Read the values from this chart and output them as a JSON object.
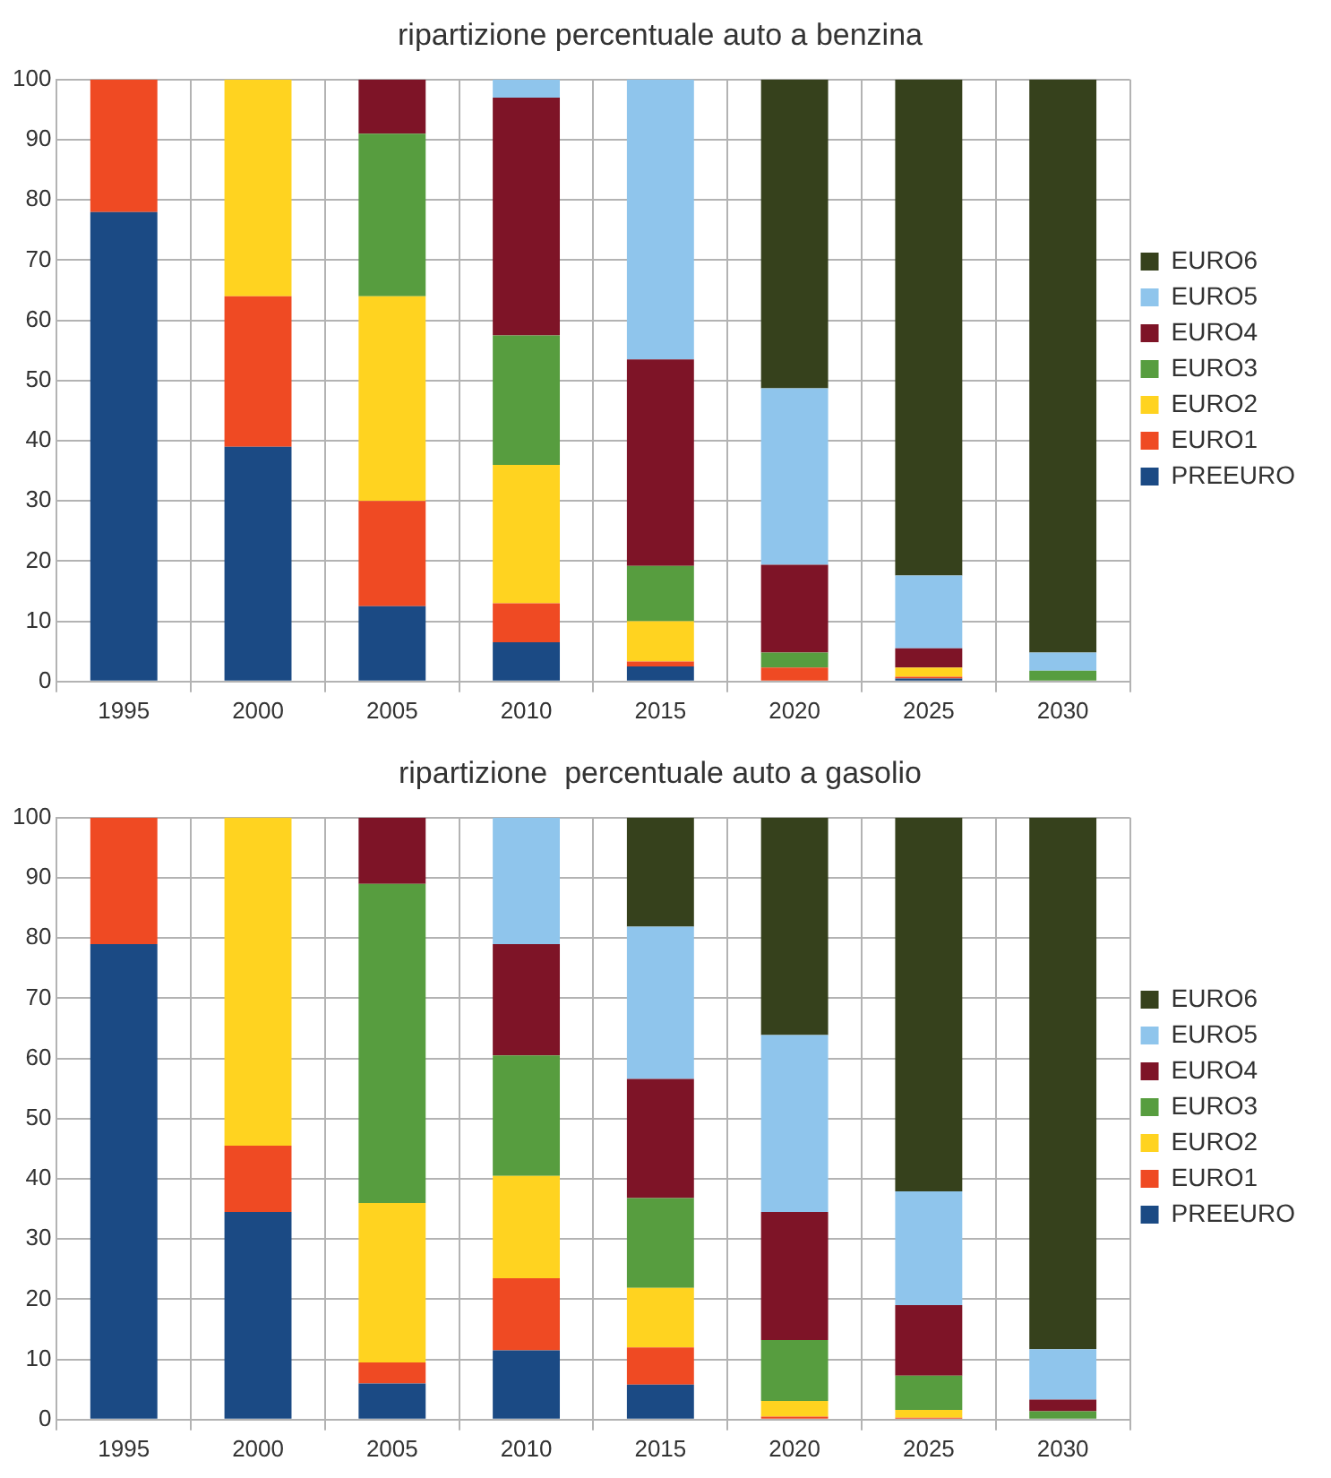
{
  "chart_data": [
    {
      "type": "bar",
      "title": "ripartizione percentuale auto a benzina",
      "stacked": true,
      "categories": [
        "1995",
        "2000",
        "2005",
        "2010",
        "2015",
        "2020",
        "2025",
        "2030"
      ],
      "ylim": [
        0,
        100
      ],
      "yticks": [
        0,
        10,
        20,
        30,
        40,
        50,
        60,
        70,
        80,
        90,
        100
      ],
      "grid": true,
      "legend": "right",
      "series": [
        {
          "name": "PREEURO",
          "color": "#1b4a84",
          "values": [
            78,
            39,
            12.5,
            6.5,
            2.5,
            0,
            0.5,
            0
          ]
        },
        {
          "name": "EURO1",
          "color": "#ef4a23",
          "values": [
            22,
            25,
            17.5,
            6.5,
            0.8,
            2.3,
            0.3,
            0
          ]
        },
        {
          "name": "EURO2",
          "color": "#ffd320",
          "values": [
            0,
            36,
            34,
            23,
            6.7,
            0,
            1.5,
            0
          ]
        },
        {
          "name": "EURO3",
          "color": "#579d3f",
          "values": [
            0,
            0,
            27,
            21.5,
            9.2,
            2.5,
            0,
            1.8
          ]
        },
        {
          "name": "EURO4",
          "color": "#7e1427",
          "values": [
            0,
            0,
            9,
            39.5,
            34.3,
            14.6,
            3.2,
            0
          ]
        },
        {
          "name": "EURO5",
          "color": "#8fc5ec",
          "values": [
            0,
            0,
            0,
            3,
            46.5,
            29.3,
            12.1,
            3
          ]
        },
        {
          "name": "EURO6",
          "color": "#36411c",
          "values": [
            0,
            0,
            0,
            0,
            0,
            51.3,
            82.4,
            95.2
          ]
        }
      ]
    },
    {
      "type": "bar",
      "title": "ripartizione  percentuale auto a gasolio",
      "stacked": true,
      "categories": [
        "1995",
        "2000",
        "2005",
        "2010",
        "2015",
        "2020",
        "2025",
        "2030"
      ],
      "ylim": [
        0,
        100
      ],
      "yticks": [
        0,
        10,
        20,
        30,
        40,
        50,
        60,
        70,
        80,
        90,
        100
      ],
      "grid": true,
      "legend": "right",
      "series": [
        {
          "name": "PREEURO",
          "color": "#1b4a84",
          "values": [
            79,
            34.5,
            6,
            11.5,
            5.8,
            0,
            0,
            0
          ]
        },
        {
          "name": "EURO1",
          "color": "#ef4a23",
          "values": [
            21,
            11,
            3.5,
            12,
            6.2,
            0.5,
            0.3,
            0
          ]
        },
        {
          "name": "EURO2",
          "color": "#ffd320",
          "values": [
            0,
            54.5,
            26.5,
            17,
            9.9,
            2.6,
            1.3,
            0
          ]
        },
        {
          "name": "EURO3",
          "color": "#579d3f",
          "values": [
            0,
            0,
            53,
            20,
            14.9,
            10.1,
            5.7,
            1.4
          ]
        },
        {
          "name": "EURO4",
          "color": "#7e1427",
          "values": [
            0,
            0,
            11,
            18.5,
            19.8,
            21.3,
            11.7,
            1.9
          ]
        },
        {
          "name": "EURO5",
          "color": "#8fc5ec",
          "values": [
            0,
            0,
            0,
            21,
            25.3,
            29.4,
            18.9,
            8.4
          ]
        },
        {
          "name": "EURO6",
          "color": "#36411c",
          "values": [
            0,
            0,
            0,
            0,
            18.1,
            36.1,
            62.1,
            88.3
          ]
        }
      ]
    }
  ]
}
